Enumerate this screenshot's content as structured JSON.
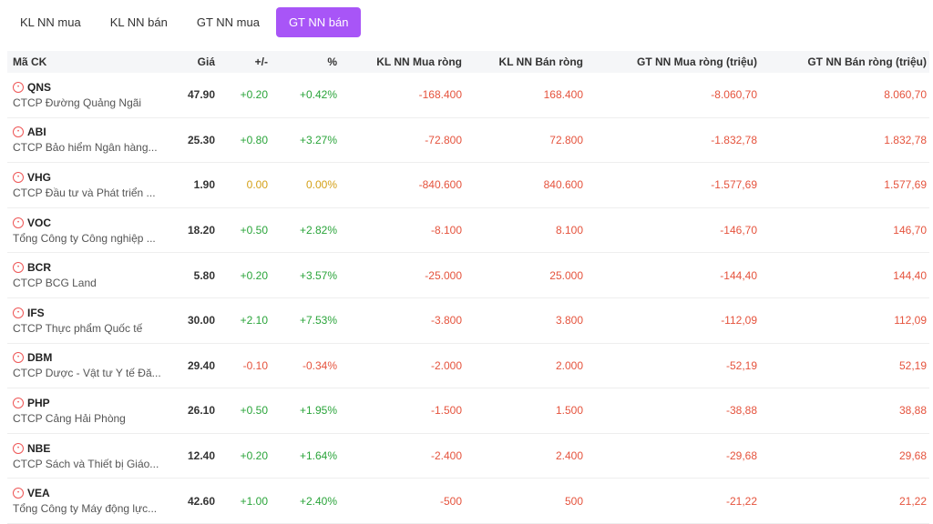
{
  "tabs": [
    {
      "label": "KL NN mua",
      "active": false
    },
    {
      "label": "KL NN bán",
      "active": false
    },
    {
      "label": "GT NN mua",
      "active": false
    },
    {
      "label": "GT NN bán",
      "active": true
    }
  ],
  "table": {
    "headers": {
      "symbol": "Mã CK",
      "price": "Giá",
      "change": "+/-",
      "pct": "%",
      "kl_buy": "KL NN Mua ròng",
      "kl_sell": "KL NN Bán ròng",
      "gt_buy": "GT NN Mua ròng (triệu)",
      "gt_sell": "GT NN Bán ròng (triệu)"
    },
    "rows": [
      {
        "symbol": "QNS",
        "name": "CTCP Đường Quảng Ngãi",
        "price": "47.90",
        "change": "+0.20",
        "pct": "+0.42%",
        "trend": "up",
        "kl_buy": "-168.400",
        "kl_sell": "168.400",
        "gt_buy": "-8.060,70",
        "gt_sell": "8.060,70"
      },
      {
        "symbol": "ABI",
        "name": "CTCP Bảo hiểm Ngân hàng...",
        "price": "25.30",
        "change": "+0.80",
        "pct": "+3.27%",
        "trend": "up",
        "kl_buy": "-72.800",
        "kl_sell": "72.800",
        "gt_buy": "-1.832,78",
        "gt_sell": "1.832,78"
      },
      {
        "symbol": "VHG",
        "name": "CTCP Đầu tư và Phát triển ...",
        "price": "1.90",
        "change": "0.00",
        "pct": "0.00%",
        "trend": "ref",
        "kl_buy": "-840.600",
        "kl_sell": "840.600",
        "gt_buy": "-1.577,69",
        "gt_sell": "1.577,69"
      },
      {
        "symbol": "VOC",
        "name": "Tổng Công ty Công nghiệp ...",
        "price": "18.20",
        "change": "+0.50",
        "pct": "+2.82%",
        "trend": "up",
        "kl_buy": "-8.100",
        "kl_sell": "8.100",
        "gt_buy": "-146,70",
        "gt_sell": "146,70"
      },
      {
        "symbol": "BCR",
        "name": "CTCP BCG Land",
        "price": "5.80",
        "change": "+0.20",
        "pct": "+3.57%",
        "trend": "up",
        "kl_buy": "-25.000",
        "kl_sell": "25.000",
        "gt_buy": "-144,40",
        "gt_sell": "144,40"
      },
      {
        "symbol": "IFS",
        "name": "CTCP Thực phẩm Quốc tế",
        "price": "30.00",
        "change": "+2.10",
        "pct": "+7.53%",
        "trend": "up",
        "kl_buy": "-3.800",
        "kl_sell": "3.800",
        "gt_buy": "-112,09",
        "gt_sell": "112,09"
      },
      {
        "symbol": "DBM",
        "name": "CTCP Dược - Vật tư Y tế Đă...",
        "price": "29.40",
        "change": "-0.10",
        "pct": "-0.34%",
        "trend": "down",
        "kl_buy": "-2.000",
        "kl_sell": "2.000",
        "gt_buy": "-52,19",
        "gt_sell": "52,19"
      },
      {
        "symbol": "PHP",
        "name": "CTCP Cảng Hải Phòng",
        "price": "26.10",
        "change": "+0.50",
        "pct": "+1.95%",
        "trend": "up",
        "kl_buy": "-1.500",
        "kl_sell": "1.500",
        "gt_buy": "-38,88",
        "gt_sell": "38,88"
      },
      {
        "symbol": "NBE",
        "name": "CTCP Sách và Thiết bị Giáo...",
        "price": "12.40",
        "change": "+0.20",
        "pct": "+1.64%",
        "trend": "up",
        "kl_buy": "-2.400",
        "kl_sell": "2.400",
        "gt_buy": "-29,68",
        "gt_sell": "29,68"
      },
      {
        "symbol": "VEA",
        "name": "Tổng Công ty Máy động lực...",
        "price": "42.60",
        "change": "+1.00",
        "pct": "+2.40%",
        "trend": "up",
        "kl_buy": "-500",
        "kl_sell": "500",
        "gt_buy": "-21,22",
        "gt_sell": "21,22"
      }
    ]
  },
  "colors": {
    "accent": "#a855f7",
    "up": "#2aa43a",
    "ref": "#d4a017",
    "down": "#e5533d"
  }
}
